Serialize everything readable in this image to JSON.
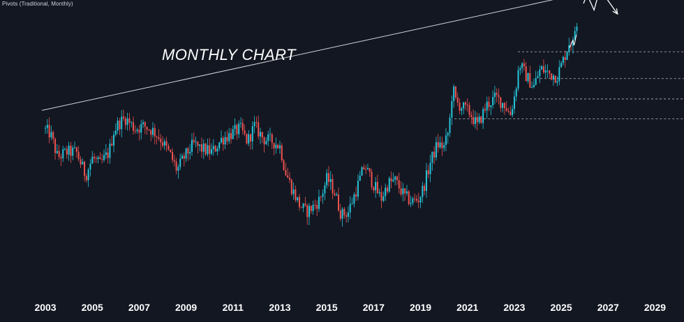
{
  "indicator": {
    "label": "Pivots (Traditional, Monthly)"
  },
  "chart_data": {
    "type": "candlestick",
    "title": "MONTHLY CHART",
    "xlabel": "",
    "ylabel": "",
    "x_axis_ticks": [
      "2003",
      "2005",
      "2007",
      "2009",
      "2011",
      "2013",
      "2015",
      "2017",
      "2019",
      "2021",
      "2023",
      "2025",
      "2027",
      "2029"
    ],
    "x_range": [
      2002.85,
      2029.7
    ],
    "y_range": [
      0,
      100
    ],
    "y_axis_shown": false,
    "grid": false,
    "colors": {
      "background": "#131722",
      "up": "#26c6da",
      "down": "#ef5350",
      "trendline": "#d1d4dc",
      "pivot_lines": "#d1d4dc",
      "projection": "#ffffff",
      "axis_text": "#ffffff"
    },
    "price_path": [
      [
        2003.0,
        56
      ],
      [
        2003.3,
        54
      ],
      [
        2003.6,
        45
      ],
      [
        2004.0,
        47
      ],
      [
        2004.4,
        47
      ],
      [
        2004.8,
        38
      ],
      [
        2005.1,
        45
      ],
      [
        2005.4,
        42
      ],
      [
        2005.8,
        47
      ],
      [
        2006.0,
        55
      ],
      [
        2006.2,
        58
      ],
      [
        2006.5,
        60
      ],
      [
        2006.9,
        56
      ],
      [
        2007.3,
        57
      ],
      [
        2007.7,
        55
      ],
      [
        2008.0,
        52
      ],
      [
        2008.4,
        46
      ],
      [
        2008.7,
        40
      ],
      [
        2009.0,
        45
      ],
      [
        2009.4,
        50
      ],
      [
        2009.8,
        48
      ],
      [
        2010.2,
        47
      ],
      [
        2010.6,
        52
      ],
      [
        2011.0,
        54
      ],
      [
        2011.4,
        56
      ],
      [
        2011.7,
        51
      ],
      [
        2012.0,
        57
      ],
      [
        2012.4,
        52
      ],
      [
        2012.8,
        51
      ],
      [
        2013.1,
        49
      ],
      [
        2013.3,
        40
      ],
      [
        2013.6,
        33
      ],
      [
        2013.9,
        27
      ],
      [
        2014.2,
        24
      ],
      [
        2014.5,
        26
      ],
      [
        2014.8,
        29
      ],
      [
        2015.1,
        37
      ],
      [
        2015.4,
        32
      ],
      [
        2015.7,
        23
      ],
      [
        2016.0,
        24
      ],
      [
        2016.4,
        34
      ],
      [
        2016.7,
        42
      ],
      [
        2017.0,
        36
      ],
      [
        2017.4,
        29
      ],
      [
        2017.7,
        35
      ],
      [
        2018.0,
        36
      ],
      [
        2018.4,
        30
      ],
      [
        2018.7,
        28
      ],
      [
        2019.0,
        29
      ],
      [
        2019.2,
        33
      ],
      [
        2019.5,
        43
      ],
      [
        2019.8,
        50
      ],
      [
        2020.1,
        49
      ],
      [
        2020.3,
        56
      ],
      [
        2020.45,
        72
      ],
      [
        2020.6,
        66
      ],
      [
        2020.9,
        64
      ],
      [
        2021.2,
        62
      ],
      [
        2021.5,
        57
      ],
      [
        2021.9,
        65
      ],
      [
        2022.3,
        68
      ],
      [
        2022.7,
        65
      ],
      [
        2022.9,
        61
      ],
      [
        2023.1,
        69
      ],
      [
        2023.3,
        81
      ],
      [
        2023.6,
        76
      ],
      [
        2023.9,
        72
      ],
      [
        2024.2,
        79
      ],
      [
        2024.6,
        77
      ],
      [
        2024.9,
        76
      ],
      [
        2025.2,
        83
      ],
      [
        2025.45,
        90
      ],
      [
        2025.6,
        88
      ],
      [
        2025.7,
        97
      ]
    ],
    "trendline": [
      [
        2002.85,
        63
      ],
      [
        2025.7,
        107.5
      ]
    ],
    "pivot_lines": [
      {
        "from": 2023.15,
        "level": 85.5
      },
      {
        "from": 2024.1,
        "level": 75.2
      },
      {
        "from": 2023.3,
        "level": 67.4
      },
      {
        "from": 2020.45,
        "level": 59.8
      }
    ],
    "projection_path": [
      [
        2025.95,
        104
      ],
      [
        2026.1,
        107.5
      ],
      [
        2026.4,
        101.5
      ],
      [
        2026.65,
        109.5
      ],
      [
        2027.4,
        100
      ]
    ],
    "projection_zigzag_near_price": [
      [
        2025.35,
        87
      ],
      [
        2025.5,
        90
      ],
      [
        2025.55,
        88
      ],
      [
        2025.65,
        92
      ]
    ]
  }
}
